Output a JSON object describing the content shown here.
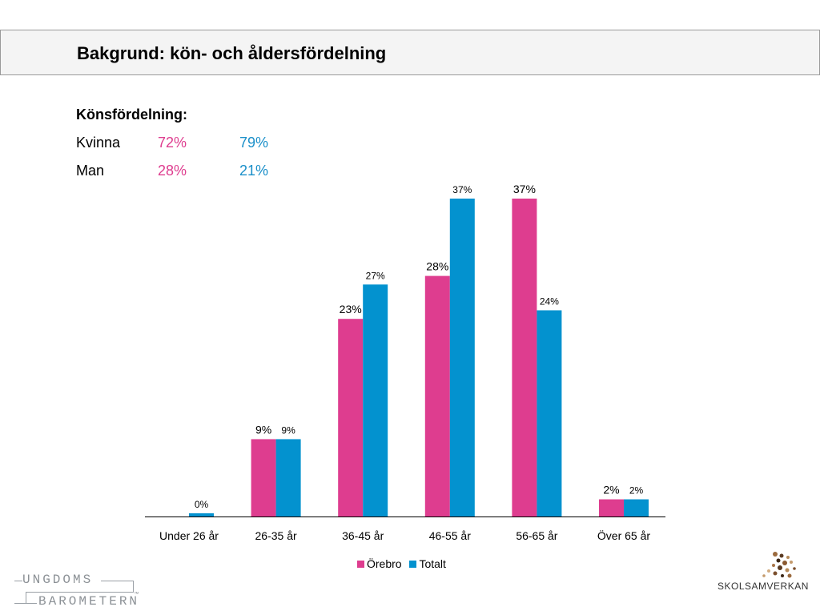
{
  "header": {
    "title": "Bakgrund: kön- och åldersfördelning"
  },
  "gender": {
    "heading": "Könsfördelning:",
    "rows": [
      {
        "label": "Kvinna",
        "orebro": "72%",
        "totalt": "79%"
      },
      {
        "label": "Man",
        "orebro": "28%",
        "totalt": "21%"
      }
    ]
  },
  "colors": {
    "orebro": "#de3d8f",
    "totalt": "#0392cf",
    "axis": "#000000"
  },
  "chart_data": {
    "type": "bar",
    "categories": [
      "Under 26 år",
      "26-35 år",
      "36-45 år",
      "46-55 år",
      "56-65 år",
      "Över 65 år"
    ],
    "series": [
      {
        "name": "Örebro",
        "values": [
          null,
          9,
          23,
          28,
          37,
          2
        ],
        "labels": [
          "",
          "9%",
          "23%",
          "28%",
          "37%",
          "2%"
        ]
      },
      {
        "name": "Totalt",
        "values": [
          0,
          9,
          27,
          37,
          24,
          2
        ],
        "labels": [
          "0%",
          "9%",
          "27%",
          "37%",
          "24%",
          "2%"
        ]
      }
    ],
    "ylim": [
      0,
      37
    ],
    "legend": "bottom",
    "grid": false
  },
  "logos": {
    "left_line1": "UNGDOMS",
    "left_line2": "BAROMETERN",
    "left_tm": "™",
    "right": "SKOLSAMVERKAN"
  }
}
